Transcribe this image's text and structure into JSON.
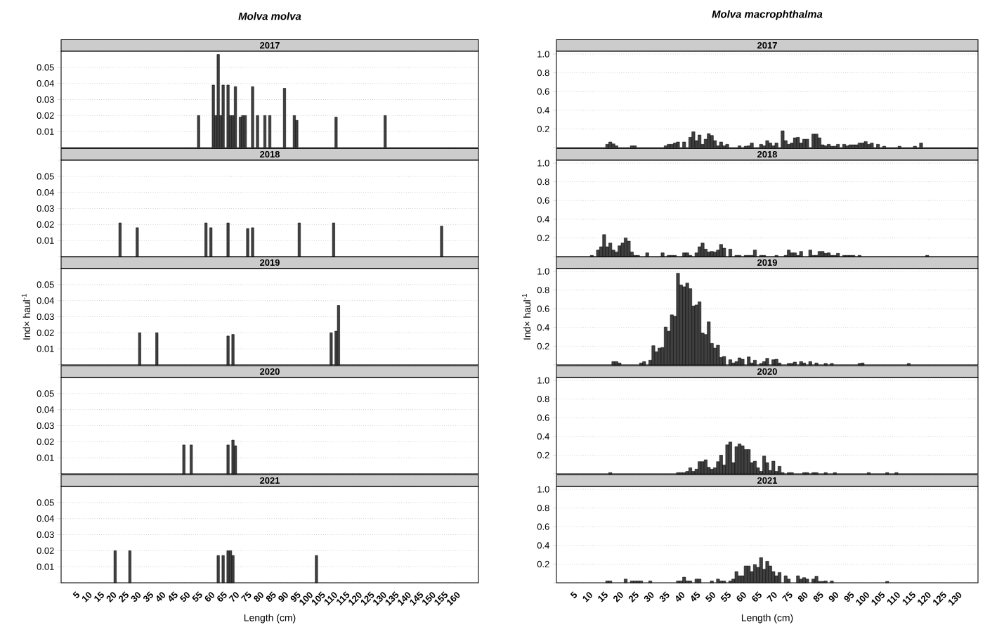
{
  "chart_data": [
    {
      "type": "bar",
      "title": "*Molva molva*",
      "subtitle": "2017",
      "color": "#404040",
      "grid": "y",
      "tick_labels": "y",
      "xlim": [
        -1,
        169
      ],
      "ylim": [
        0,
        0.06
      ],
      "yticks": [
        {
          "value": 0,
          "label": null
        },
        0.01,
        0.02,
        0.03,
        0.04,
        0.05,
        {
          "value": 0.06,
          "label": null
        }
      ],
      "x": [
        55,
        61,
        62,
        63,
        64,
        65,
        67,
        68,
        69,
        70,
        72,
        73,
        74,
        77,
        79,
        82,
        84,
        90,
        94,
        95,
        111,
        131
      ],
      "values": [
        0.02,
        0.039,
        0.02,
        0.058,
        0.02,
        0.039,
        0.039,
        0.02,
        0.02,
        0.038,
        0.019,
        0.02,
        0.02,
        0.038,
        0.02,
        0.02,
        0.02,
        0.037,
        0.02,
        0.017,
        0.019,
        0.02
      ]
    },
    {
      "type": "bar",
      "subtitle": "2018",
      "color": "#404040",
      "grid": "y",
      "tick_labels": "y",
      "xlim": [
        -1,
        169
      ],
      "ylim": [
        0,
        0.06
      ],
      "yticks": [
        {
          "value": 0,
          "label": null
        },
        0.01,
        0.02,
        0.03,
        0.04,
        0.05,
        {
          "value": 0.06,
          "label": null
        }
      ],
      "x": [
        23,
        30,
        58,
        60,
        67,
        75,
        77,
        96,
        110,
        154
      ],
      "values": [
        0.021,
        0.018,
        0.021,
        0.018,
        0.021,
        0.0175,
        0.018,
        0.021,
        0.021,
        0.019
      ]
    },
    {
      "type": "bar",
      "subtitle": "2019",
      "ylabel": "Ind× haul$^{-1}$",
      "color": "#404040",
      "grid": "y",
      "tick_labels": "y",
      "xlim": [
        -1,
        169
      ],
      "ylim": [
        0,
        0.06
      ],
      "yticks": [
        {
          "value": 0,
          "label": null
        },
        0.01,
        0.02,
        0.03,
        0.04,
        0.05,
        {
          "value": 0.06,
          "label": null
        }
      ],
      "x": [
        31,
        38,
        67,
        69,
        109,
        111,
        112
      ],
      "values": [
        0.02,
        0.02,
        0.018,
        0.019,
        0.02,
        0.021,
        0.037
      ]
    },
    {
      "type": "bar",
      "subtitle": "2020",
      "color": "#404040",
      "grid": "y",
      "tick_labels": "y",
      "xlim": [
        -1,
        169
      ],
      "ylim": [
        0,
        0.06
      ],
      "yticks": [
        {
          "value": 0,
          "label": null
        },
        0.01,
        0.02,
        0.03,
        0.04,
        0.05,
        {
          "value": 0.06,
          "label": null
        }
      ],
      "x": [
        49,
        52,
        67,
        69,
        70
      ],
      "values": [
        0.018,
        0.018,
        0.018,
        0.021,
        0.0175
      ]
    },
    {
      "type": "bar",
      "subtitle": "2021",
      "xlabel": "Length (cm)",
      "color": "#404040",
      "grid": "y",
      "xlim": [
        -1,
        169
      ],
      "ylim": [
        0,
        0.06
      ],
      "yticks": [
        {
          "value": 0,
          "label": null
        },
        0.01,
        0.02,
        0.03,
        0.04,
        0.05,
        {
          "value": 0.06,
          "label": null
        }
      ],
      "xticks": [
        5,
        10,
        15,
        20,
        25,
        30,
        35,
        40,
        45,
        50,
        55,
        60,
        65,
        70,
        75,
        80,
        85,
        90,
        95,
        100,
        105,
        110,
        115,
        120,
        125,
        130,
        135,
        140,
        145,
        150,
        155,
        160
      ],
      "x": [
        21,
        27,
        63,
        65,
        67,
        68,
        69,
        103
      ],
      "values": [
        0.02,
        0.02,
        0.017,
        0.017,
        0.02,
        0.02,
        0.017,
        0.017
      ]
    },
    {
      "type": "bar",
      "title": "*Molva macrophthalma*",
      "subtitle": "2017",
      "color": "#404040",
      "grid": "y",
      "tick_labels": "y",
      "xlim": [
        -0.5,
        136.5
      ],
      "ylim": [
        0,
        1.03
      ],
      "yticks": [
        {
          "value": 0,
          "label": null
        },
        0.2,
        0.4,
        0.6,
        0.8,
        {
          "value": 1,
          "label": "1.0"
        }
      ],
      "x": [
        16,
        17,
        18,
        19,
        24,
        25,
        35,
        36,
        37,
        38,
        39,
        41,
        43,
        44,
        45,
        46,
        47,
        48,
        49,
        50,
        51,
        52,
        53,
        54,
        55,
        59,
        61,
        62,
        63,
        66,
        67,
        68,
        69,
        70,
        71,
        73,
        74,
        75,
        76,
        77,
        78,
        79,
        80,
        81,
        83,
        84,
        85,
        86,
        87,
        88,
        89,
        90,
        91,
        93,
        94,
        95,
        96,
        97,
        98,
        99,
        100,
        101,
        102,
        104,
        106,
        111,
        116,
        118
      ],
      "values": [
        0.035,
        0.06,
        0.04,
        0.02,
        0.02,
        0.02,
        0.02,
        0.035,
        0.035,
        0.05,
        0.06,
        0.06,
        0.11,
        0.17,
        0.075,
        0.135,
        0.035,
        0.09,
        0.15,
        0.13,
        0.075,
        0.02,
        0.06,
        0.02,
        0.035,
        0.02,
        0.015,
        0.02,
        0.05,
        0.035,
        0.02,
        0.075,
        0.05,
        0.02,
        0.05,
        0.18,
        0.075,
        0.035,
        0.05,
        0.105,
        0.11,
        0.05,
        0.09,
        0.09,
        0.145,
        0.145,
        0.105,
        0.03,
        0.02,
        0.035,
        0.015,
        0.015,
        0.035,
        0.035,
        0.02,
        0.03,
        0.03,
        0.03,
        0.05,
        0.05,
        0.065,
        0.035,
        0.05,
        0.035,
        0.015,
        0.015,
        0.015,
        0.05
      ]
    },
    {
      "type": "bar",
      "subtitle": "2018",
      "color": "#404040",
      "grid": "y",
      "tick_labels": "y",
      "xlim": [
        -0.5,
        136.5
      ],
      "ylim": [
        0,
        1.03
      ],
      "yticks": [
        {
          "value": 0,
          "label": null
        },
        0.2,
        0.4,
        0.6,
        0.8,
        {
          "value": 1,
          "label": "1.0"
        }
      ],
      "x": [
        11,
        13,
        14,
        15,
        16,
        17,
        18,
        19,
        20,
        21,
        22,
        23,
        24,
        25,
        26,
        29,
        34,
        36,
        37,
        38,
        41,
        42,
        43,
        45,
        46,
        47,
        48,
        49,
        50,
        51,
        52,
        53,
        54,
        56,
        58,
        59,
        61,
        62,
        63,
        64,
        66,
        67,
        71,
        74,
        75,
        76,
        77,
        78,
        79,
        82,
        83,
        84,
        85,
        86,
        87,
        88,
        89,
        90,
        91,
        93,
        94,
        95,
        96,
        98,
        120
      ],
      "values": [
        0.013,
        0.07,
        0.105,
        0.235,
        0.105,
        0.145,
        0.07,
        0.05,
        0.115,
        0.145,
        0.2,
        0.165,
        0.05,
        0.013,
        0.013,
        0.04,
        0.04,
        0.013,
        0.013,
        0.013,
        0.04,
        0.04,
        0.013,
        0.04,
        0.105,
        0.145,
        0.08,
        0.05,
        0.055,
        0.05,
        0.07,
        0.13,
        0.09,
        0.08,
        0.013,
        0.013,
        0.013,
        0.013,
        0.013,
        0.07,
        0.013,
        0.013,
        0.013,
        0.013,
        0.07,
        0.04,
        0.04,
        0.013,
        0.055,
        0.07,
        0.013,
        0.013,
        0.055,
        0.055,
        0.035,
        0.04,
        0.013,
        0.013,
        0.035,
        0.013,
        0.013,
        0.013,
        0.013,
        0.013,
        0.013
      ]
    },
    {
      "type": "bar",
      "subtitle": "2019",
      "ylabel": "Ind× haul$^{-1}$",
      "color": "#404040",
      "grid": "y",
      "tick_labels": "y",
      "xlim": [
        -0.5,
        136.5
      ],
      "ylim": [
        0,
        1.03
      ],
      "yticks": [
        {
          "value": 0,
          "label": null
        },
        0.2,
        0.4,
        0.6,
        0.8,
        {
          "value": 1,
          "label": "1.0"
        }
      ],
      "x": [
        18,
        19,
        20,
        27,
        28,
        30,
        31,
        32,
        33,
        34,
        35,
        36,
        37,
        38,
        39,
        40,
        41,
        42,
        43,
        44,
        45,
        46,
        47,
        48,
        49,
        50,
        51,
        52,
        53,
        54,
        56,
        57,
        58,
        59,
        60,
        62,
        63,
        64,
        66,
        67,
        68,
        70,
        71,
        72,
        75,
        76,
        77,
        79,
        80,
        82,
        84,
        87,
        89,
        98,
        99,
        114
      ],
      "values": [
        0.035,
        0.035,
        0.02,
        0.02,
        0.035,
        0.05,
        0.205,
        0.14,
        0.18,
        0.185,
        0.405,
        0.36,
        0.535,
        0.52,
        0.98,
        0.855,
        0.835,
        0.875,
        0.815,
        0.63,
        0.64,
        0.675,
        0.34,
        0.325,
        0.46,
        0.23,
        0.18,
        0.21,
        0.08,
        0.09,
        0.055,
        0.02,
        0.035,
        0.075,
        0.06,
        0.085,
        0.02,
        0.05,
        0.015,
        0.035,
        0.07,
        0.055,
        0.06,
        0.02,
        0.015,
        0.015,
        0.03,
        0.035,
        0.02,
        0.035,
        0.02,
        0.015,
        0.015,
        0.015,
        0.02,
        0.015
      ]
    },
    {
      "type": "bar",
      "subtitle": "2020",
      "color": "#404040",
      "grid": "y",
      "tick_labels": "y",
      "xlim": [
        -0.5,
        136.5
      ],
      "ylim": [
        0,
        1.03
      ],
      "yticks": [
        {
          "value": 0,
          "label": null
        },
        0.2,
        0.4,
        0.6,
        0.8,
        {
          "value": 1,
          "label": "1.0"
        }
      ],
      "x": [
        17,
        39,
        40,
        41,
        42,
        43,
        44,
        45,
        46,
        47,
        48,
        49,
        50,
        51,
        52,
        53,
        54,
        55,
        56,
        57,
        58,
        59,
        60,
        61,
        62,
        63,
        64,
        65,
        66,
        67,
        68,
        69,
        70,
        71,
        72,
        73,
        75,
        76,
        80,
        81,
        83,
        84,
        87,
        90,
        101,
        107,
        110
      ],
      "values": [
        0.013,
        0.013,
        0.013,
        0.013,
        0.026,
        0.065,
        0.026,
        0.05,
        0.13,
        0.13,
        0.15,
        0.07,
        0.05,
        0.065,
        0.13,
        0.2,
        0.095,
        0.31,
        0.34,
        0.12,
        0.29,
        0.32,
        0.3,
        0.26,
        0.26,
        0.12,
        0.135,
        0.065,
        0.026,
        0.19,
        0.12,
        0.036,
        0.135,
        0.026,
        0.08,
        0.013,
        0.013,
        0.013,
        0.013,
        0.013,
        0.013,
        0.013,
        0.013,
        0.013,
        0.013,
        0.013,
        0.013
      ]
    },
    {
      "type": "bar",
      "subtitle": "2021",
      "xlabel": "Length (cm)",
      "color": "#404040",
      "grid": "y",
      "xlim": [
        -0.5,
        136.5
      ],
      "ylim": [
        0,
        1.03
      ],
      "yticks": [
        {
          "value": 0,
          "label": null
        },
        0.2,
        0.4,
        0.6,
        0.8,
        {
          "value": 1,
          "label": "1.0"
        }
      ],
      "xticks": [
        5,
        10,
        15,
        20,
        25,
        30,
        35,
        40,
        45,
        50,
        55,
        60,
        65,
        70,
        75,
        80,
        85,
        90,
        95,
        100,
        105,
        110,
        115,
        120,
        125,
        130
      ],
      "x": [
        16,
        17,
        22,
        24,
        25,
        26,
        27,
        30,
        39,
        40,
        41,
        42,
        43,
        45,
        46,
        50,
        52,
        53,
        54,
        56,
        57,
        58,
        59,
        60,
        61,
        62,
        63,
        64,
        65,
        66,
        67,
        68,
        69,
        70,
        71,
        72,
        74,
        75,
        78,
        79,
        80,
        81,
        83,
        84,
        85,
        86,
        87,
        89,
        107
      ],
      "values": [
        0.02,
        0.02,
        0.04,
        0.02,
        0.02,
        0.02,
        0.02,
        0.02,
        0.02,
        0.02,
        0.06,
        0.02,
        0.02,
        0.04,
        0.04,
        0.02,
        0.04,
        0.02,
        0.02,
        0.02,
        0.04,
        0.12,
        0.075,
        0.075,
        0.18,
        0.18,
        0.12,
        0.195,
        0.165,
        0.27,
        0.145,
        0.23,
        0.18,
        0.12,
        0.075,
        0.11,
        0.075,
        0.04,
        0.075,
        0.04,
        0.055,
        0.04,
        0.04,
        0.07,
        0.015,
        0.015,
        0.02,
        0.02,
        0.015
      ]
    }
  ]
}
